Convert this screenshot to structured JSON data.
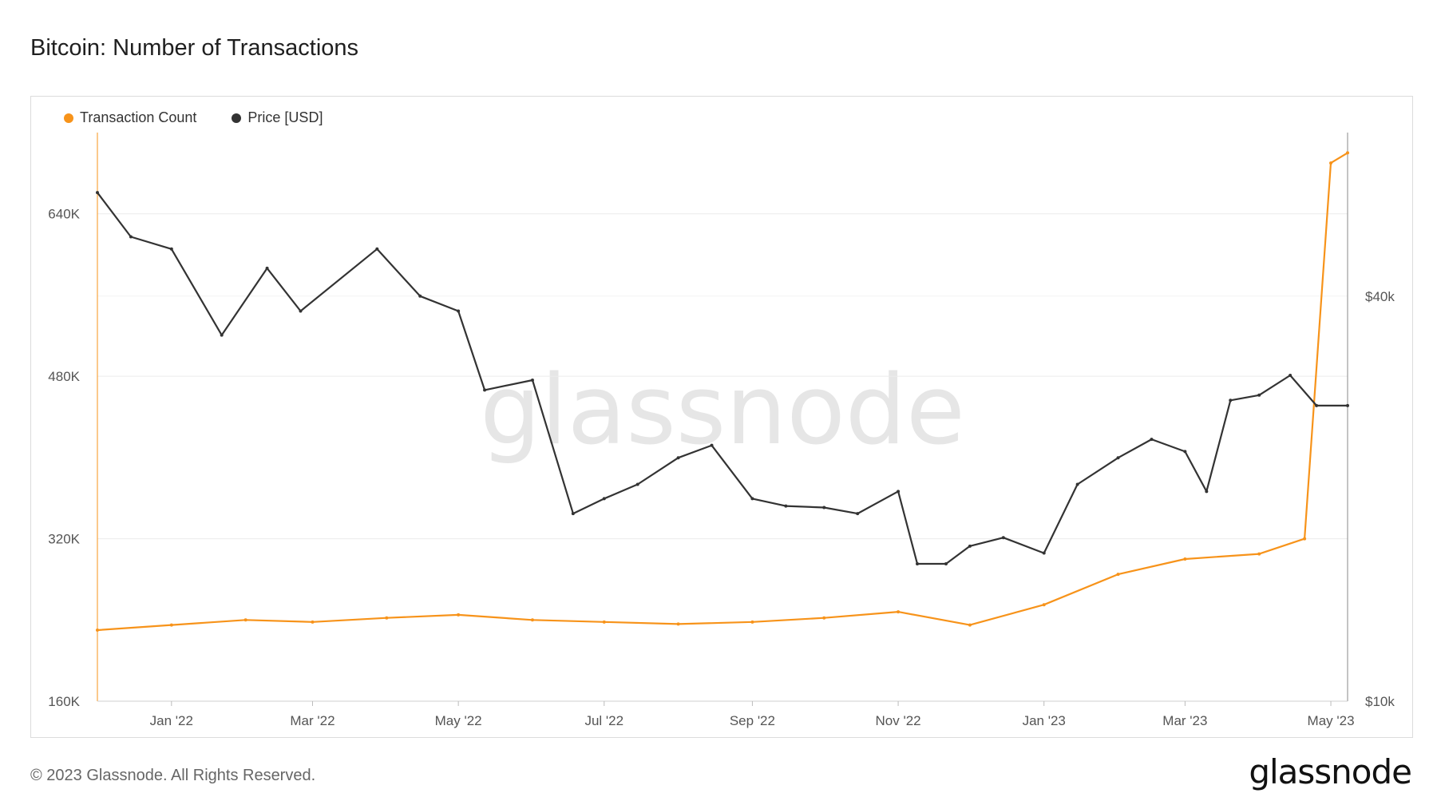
{
  "page": {
    "title": "Bitcoin: Number of Transactions",
    "footer": "© 2023 Glassnode. All Rights Reserved.",
    "logo": "glassnode",
    "watermark": "glassnode"
  },
  "chart_data": {
    "type": "line",
    "title": "Bitcoin: Number of Transactions",
    "legend_position": "top-left",
    "grid": true,
    "x_range": [
      "2021-12-01",
      "2023-05-08"
    ],
    "x_tick_labels": [
      "Jan '22",
      "Mar '22",
      "May '22",
      "Jul '22",
      "Sep '22",
      "Nov '22",
      "Jan '23",
      "Mar '23",
      "May '23"
    ],
    "y_left": {
      "ticks": [
        "160K",
        "320K",
        "480K",
        "640K"
      ],
      "tick_values": [
        160000,
        320000,
        480000,
        640000
      ],
      "range": [
        160000,
        720000
      ]
    },
    "y_right": {
      "ticks": [
        "$10k",
        "$40k"
      ],
      "tick_values": [
        10000,
        40000
      ],
      "scale": "log",
      "range": [
        10000,
        70000
      ]
    },
    "series": [
      {
        "name": "Transaction Count",
        "color": "#f7931a",
        "axis": "left",
        "x": [
          "2021-12-01",
          "2022-01-01",
          "2022-02-01",
          "2022-03-01",
          "2022-04-01",
          "2022-05-01",
          "2022-06-01",
          "2022-07-01",
          "2022-08-01",
          "2022-09-01",
          "2022-10-01",
          "2022-11-01",
          "2022-12-01",
          "2023-01-01",
          "2023-02-01",
          "2023-03-01",
          "2023-04-01",
          "2023-04-20",
          "2023-05-01",
          "2023-05-08"
        ],
        "values": [
          230000,
          235000,
          240000,
          238000,
          242000,
          245000,
          240000,
          238000,
          236000,
          238000,
          242000,
          248000,
          235000,
          255000,
          285000,
          300000,
          305000,
          320000,
          690000,
          700000
        ]
      },
      {
        "name": "Price [USD]",
        "color": "#333333",
        "axis": "right",
        "x": [
          "2021-12-01",
          "2021-12-15",
          "2022-01-01",
          "2022-01-22",
          "2022-02-10",
          "2022-02-24",
          "2022-03-28",
          "2022-04-15",
          "2022-05-01",
          "2022-05-12",
          "2022-06-01",
          "2022-06-18",
          "2022-07-01",
          "2022-07-15",
          "2022-08-01",
          "2022-08-15",
          "2022-09-01",
          "2022-09-15",
          "2022-10-01",
          "2022-10-15",
          "2022-11-01",
          "2022-11-09",
          "2022-11-21",
          "2022-12-01",
          "2022-12-15",
          "2023-01-01",
          "2023-01-15",
          "2023-02-01",
          "2023-02-15",
          "2023-03-01",
          "2023-03-10",
          "2023-03-20",
          "2023-04-01",
          "2023-04-14",
          "2023-04-25",
          "2023-05-08"
        ],
        "values": [
          57000,
          49000,
          47000,
          35000,
          44000,
          38000,
          47000,
          40000,
          38000,
          29000,
          30000,
          19000,
          20000,
          21000,
          23000,
          24000,
          20000,
          19500,
          19400,
          19000,
          20500,
          16000,
          16000,
          17000,
          17500,
          16600,
          21000,
          23000,
          24500,
          23500,
          20500,
          28000,
          28500,
          30500,
          27500,
          27500
        ]
      }
    ]
  }
}
